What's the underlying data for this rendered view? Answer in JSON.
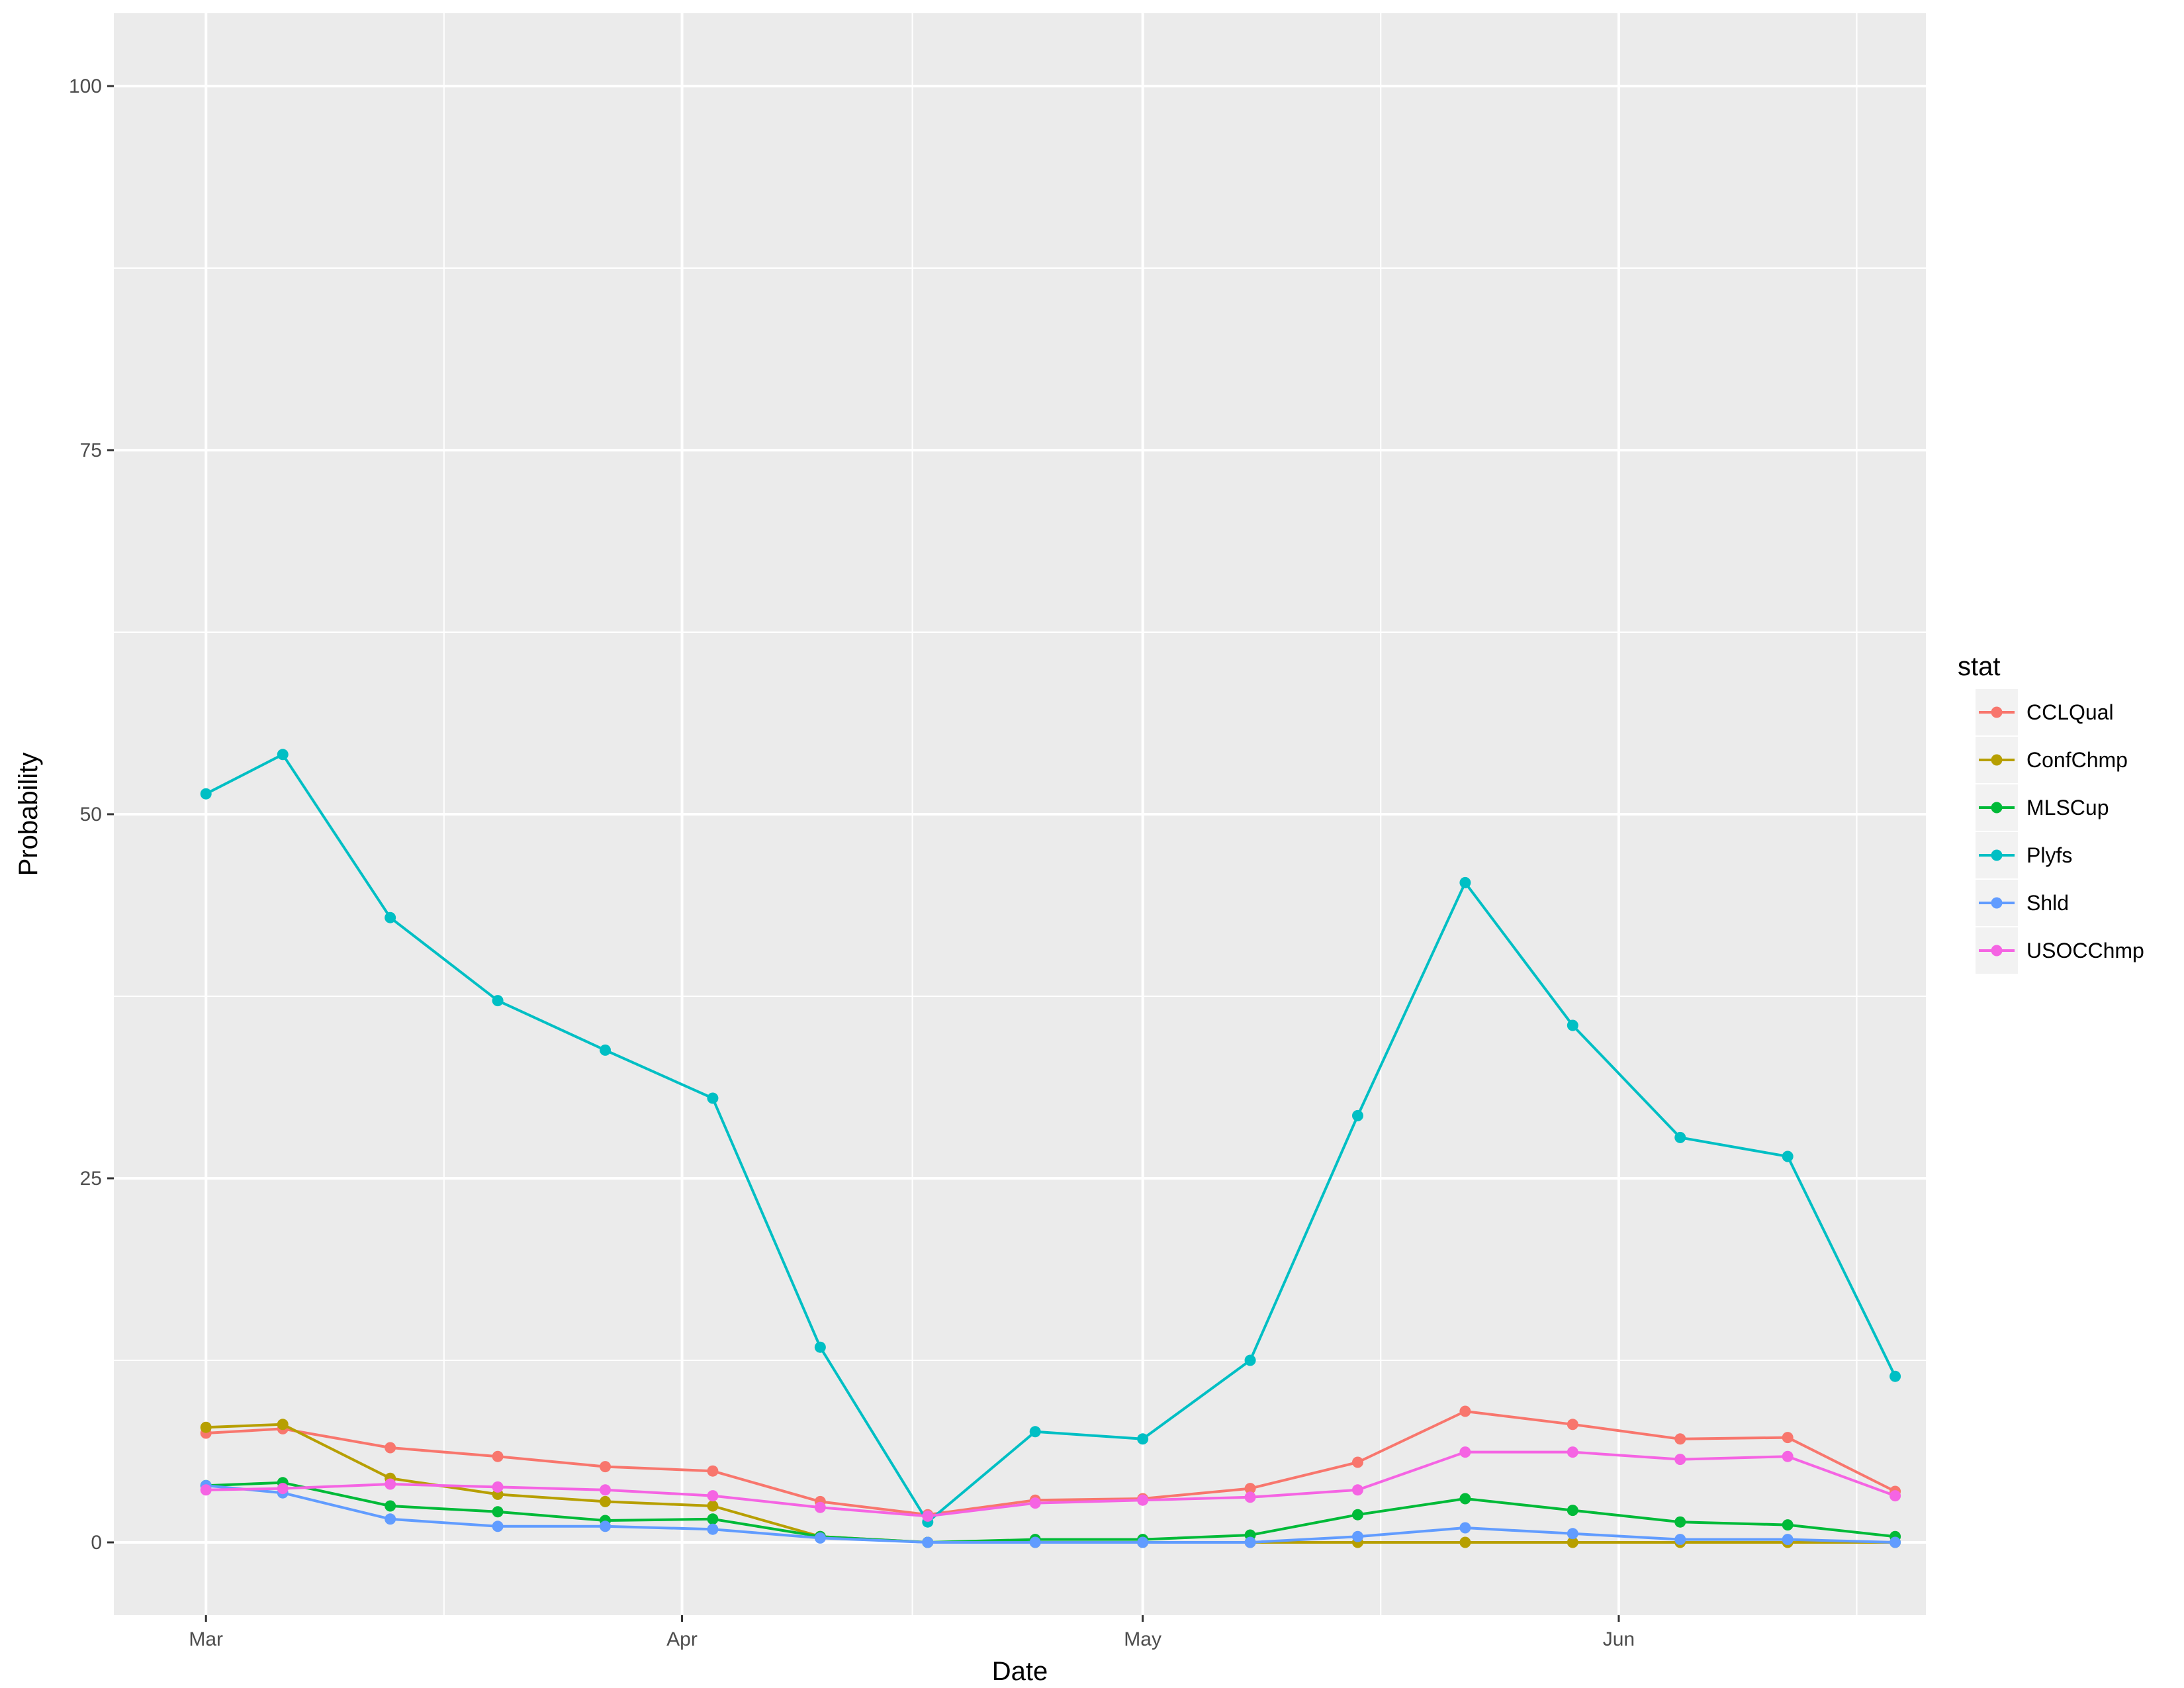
{
  "chart_data": {
    "type": "line",
    "title": "",
    "xlabel": "Date",
    "ylabel": "Probability",
    "ylim": [
      -5,
      105
    ],
    "xlim": [
      "2017-02-23",
      "2017-06-21"
    ],
    "x": [
      "2017-03-01",
      "2017-03-06",
      "2017-03-13",
      "2017-03-20",
      "2017-03-27",
      "2017-04-03",
      "2017-04-10",
      "2017-04-17",
      "2017-04-24",
      "2017-05-01",
      "2017-05-08",
      "2017-05-15",
      "2017-05-22",
      "2017-05-29",
      "2017-06-05",
      "2017-06-12",
      "2017-06-19"
    ],
    "x_ticks": [
      {
        "date": "2017-03-01",
        "label": "Mar"
      },
      {
        "date": "2017-04-01",
        "label": "Apr"
      },
      {
        "date": "2017-05-01",
        "label": "May"
      },
      {
        "date": "2017-06-01",
        "label": "Jun"
      }
    ],
    "y_ticks": [
      0,
      25,
      50,
      75,
      100
    ],
    "grid": true,
    "legend": {
      "title": "stat",
      "position": "right"
    },
    "series": [
      {
        "name": "CCLQual",
        "color": "#F8766D",
        "values": [
          7.5,
          7.8,
          6.5,
          5.9,
          5.2,
          4.9,
          2.8,
          1.9,
          2.9,
          3.0,
          3.7,
          5.5,
          9.0,
          8.1,
          7.1,
          7.2,
          3.5
        ]
      },
      {
        "name": "ConfChmp",
        "color": "#B79F00",
        "values": [
          7.9,
          8.1,
          4.4,
          3.3,
          2.8,
          2.5,
          0.4,
          0.0,
          0.0,
          0.0,
          0.0,
          0.0,
          0.0,
          0.0,
          0.0,
          0.0,
          0.0
        ]
      },
      {
        "name": "MLSCup",
        "color": "#00BA38",
        "values": [
          3.9,
          4.1,
          2.5,
          2.1,
          1.5,
          1.6,
          0.4,
          0.0,
          0.2,
          0.2,
          0.5,
          1.9,
          3.0,
          2.2,
          1.4,
          1.2,
          0.4
        ]
      },
      {
        "name": "Plyfs",
        "color": "#00BFC4",
        "values": [
          51.4,
          54.1,
          42.9,
          37.2,
          33.8,
          30.5,
          13.4,
          1.4,
          7.6,
          7.1,
          12.5,
          29.3,
          45.3,
          35.5,
          27.8,
          26.5,
          11.4
        ]
      },
      {
        "name": "Shld",
        "color": "#619CFF",
        "values": [
          3.9,
          3.4,
          1.6,
          1.1,
          1.1,
          0.9,
          0.3,
          0.0,
          0.0,
          0.0,
          0.0,
          0.4,
          1.0,
          0.6,
          0.2,
          0.2,
          0.0
        ]
      },
      {
        "name": "USOCChmp",
        "color": "#F564E3",
        "values": [
          3.6,
          3.7,
          4.0,
          3.8,
          3.6,
          3.2,
          2.4,
          1.8,
          2.7,
          2.9,
          3.1,
          3.6,
          6.2,
          6.2,
          5.7,
          5.9,
          3.2
        ]
      }
    ]
  },
  "colors": {
    "panel_background": "#EBEBEB",
    "grid_major": "#FFFFFF",
    "tick_text": "#4D4D4D"
  }
}
